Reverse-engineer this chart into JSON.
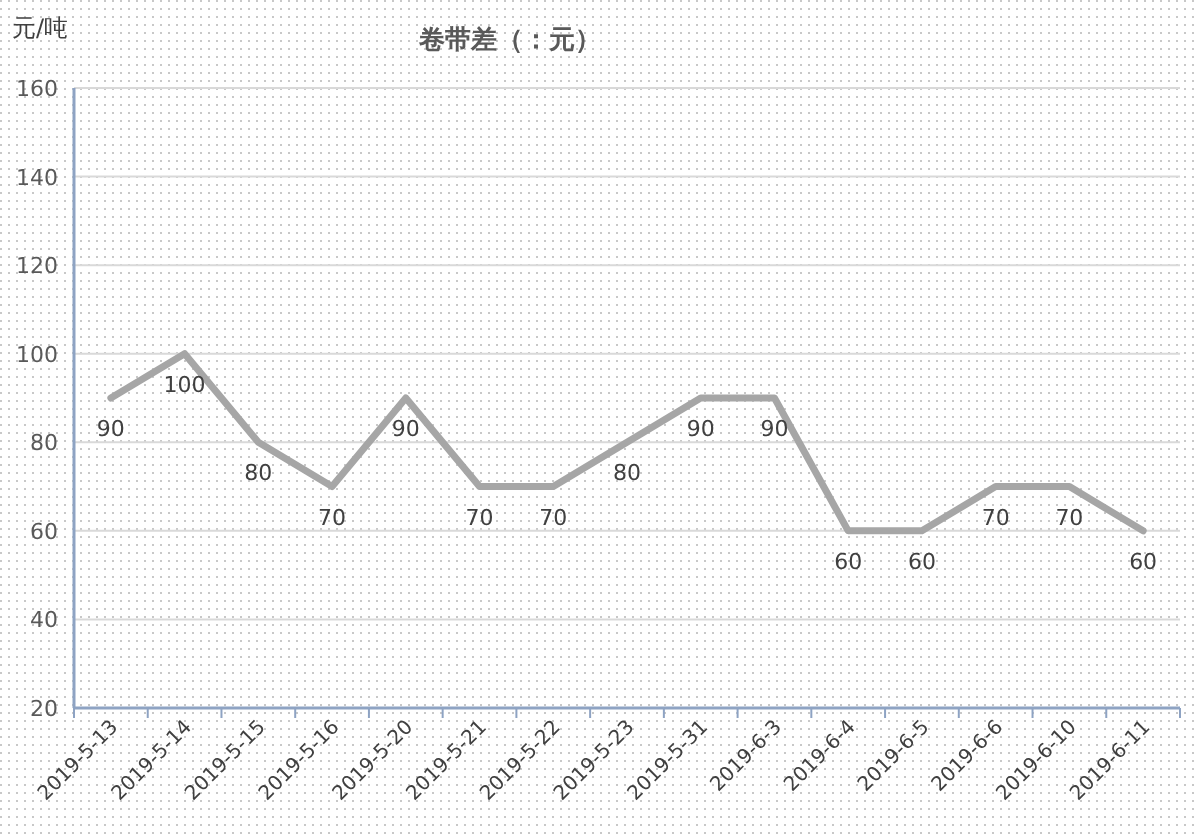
{
  "chart_data": {
    "type": "line",
    "title": "卷带差（：元）",
    "ylabel": "元/吨",
    "categories": [
      "2019-5-13",
      "2019-5-14",
      "2019-5-15",
      "2019-5-16",
      "2019-5-20",
      "2019-5-21",
      "2019-5-22",
      "2019-5-23",
      "2019-5-31",
      "2019-6-3",
      "2019-6-4",
      "2019-6-5",
      "2019-6-6",
      "2019-6-10",
      "2019-6-11"
    ],
    "series": [
      {
        "color": "#a6a6a6",
        "values": [
          90,
          100,
          80,
          70,
          90,
          70,
          70,
          80,
          90,
          90,
          60,
          60,
          70,
          70,
          60
        ]
      }
    ],
    "ylim": [
      20,
      160
    ],
    "yticks": [
      20,
      40,
      60,
      80,
      100,
      120,
      140,
      160
    ],
    "grid": "y",
    "data_labels": true,
    "marker": "none",
    "line_style": "solid"
  }
}
